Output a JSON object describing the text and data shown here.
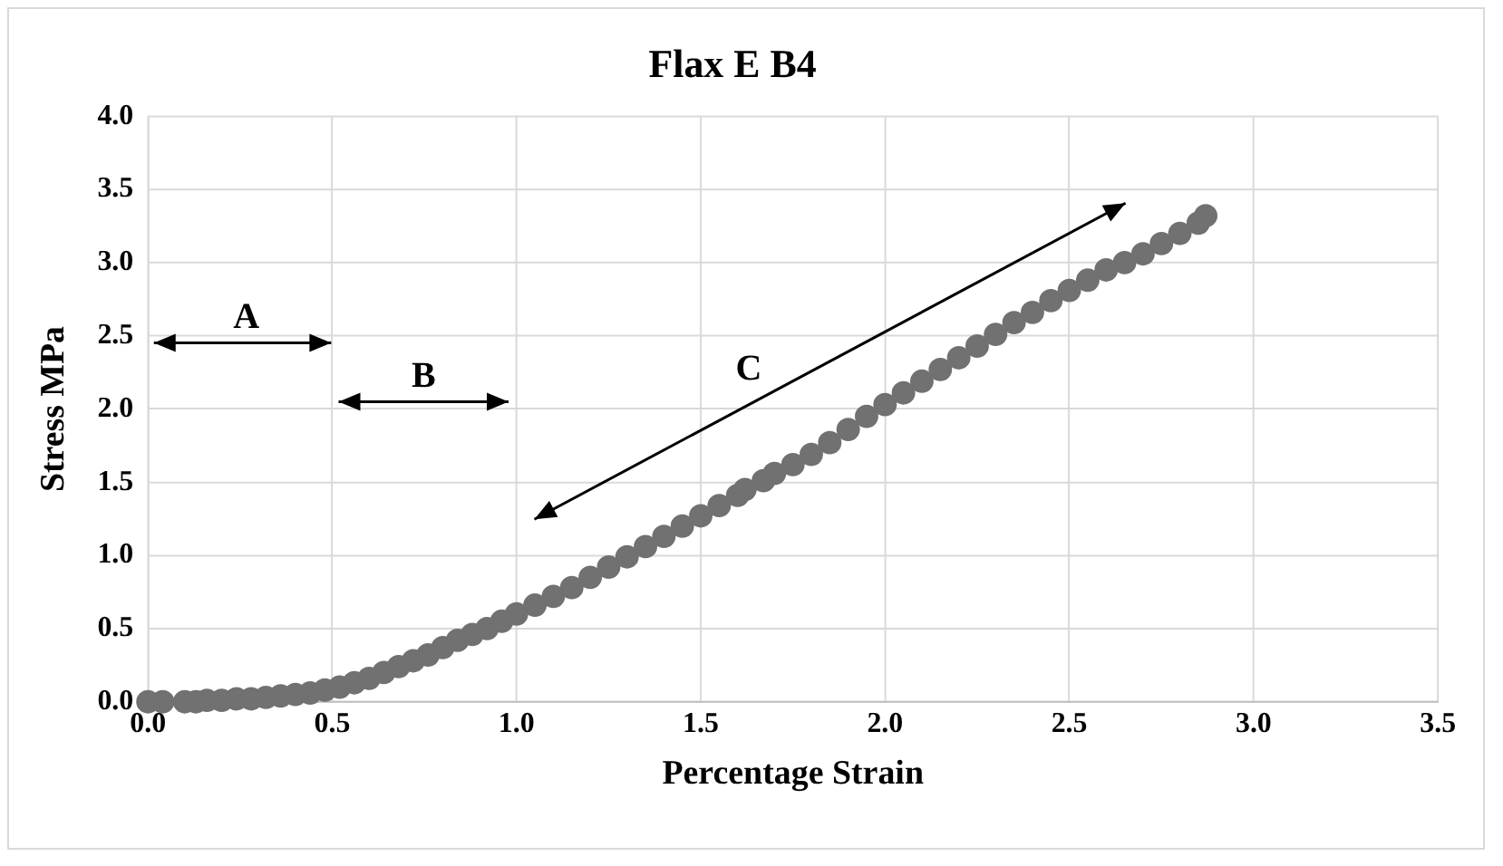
{
  "chart_data": {
    "type": "scatter",
    "title": "Flax E B4",
    "xlabel": "Percentage Strain",
    "ylabel": "Stress MPa",
    "series": [
      {
        "color": "#717171",
        "x": [
          0,
          0.04,
          0.1,
          0.13,
          0.16,
          0.2,
          0.24,
          0.28,
          0.32,
          0.36,
          0.4,
          0.44,
          0.48,
          0.52,
          0.56,
          0.6,
          0.64,
          0.68,
          0.72,
          0.76,
          0.8,
          0.84,
          0.88,
          0.92,
          0.96,
          1.0,
          1.05,
          1.1,
          1.15,
          1.2,
          1.25,
          1.3,
          1.35,
          1.4,
          1.45,
          1.5,
          1.55,
          1.6,
          1.62,
          1.67,
          1.7,
          1.75,
          1.8,
          1.85,
          1.9,
          1.95,
          2.0,
          2.05,
          2.1,
          2.15,
          2.2,
          2.25,
          2.3,
          2.35,
          2.4,
          2.45,
          2.5,
          2.55,
          2.6,
          2.65,
          2.7,
          2.75,
          2.8,
          2.85,
          2.87
        ],
        "values": [
          0,
          0,
          0,
          0,
          0.01,
          0.01,
          0.02,
          0.02,
          0.03,
          0.04,
          0.05,
          0.06,
          0.08,
          0.1,
          0.13,
          0.16,
          0.2,
          0.24,
          0.28,
          0.32,
          0.37,
          0.42,
          0.46,
          0.5,
          0.55,
          0.6,
          0.66,
          0.72,
          0.78,
          0.85,
          0.92,
          0.99,
          1.06,
          1.13,
          1.2,
          1.27,
          1.34,
          1.41,
          1.45,
          1.51,
          1.56,
          1.62,
          1.69,
          1.77,
          1.86,
          1.95,
          2.03,
          2.11,
          2.19,
          2.27,
          2.35,
          2.43,
          2.51,
          2.59,
          2.66,
          2.74,
          2.81,
          2.88,
          2.95,
          3.0,
          3.06,
          3.13,
          3.2,
          3.27,
          3.32
        ]
      }
    ],
    "xlim": [
      0,
      3.5
    ],
    "xticks": [
      {
        "value": 0,
        "label": "0.0"
      },
      0.5,
      {
        "value": 1,
        "label": "1.0"
      },
      1.5,
      {
        "value": 2,
        "label": "2.0"
      },
      2.5,
      {
        "value": 3,
        "label": "3.0"
      },
      3.5
    ],
    "ylim": [
      0,
      4
    ],
    "yticks": [
      {
        "value": 0,
        "label": "0.0"
      },
      0.5,
      {
        "value": 1,
        "label": "1.0"
      },
      1.5,
      {
        "value": 2,
        "label": "2.0"
      },
      2.5,
      {
        "value": 3,
        "label": "3.0"
      },
      3.5,
      {
        "value": 4,
        "label": "4.0"
      }
    ],
    "grid": true,
    "legend": false,
    "marker": "circle",
    "annotations": [
      "A",
      "B",
      "C"
    ]
  }
}
